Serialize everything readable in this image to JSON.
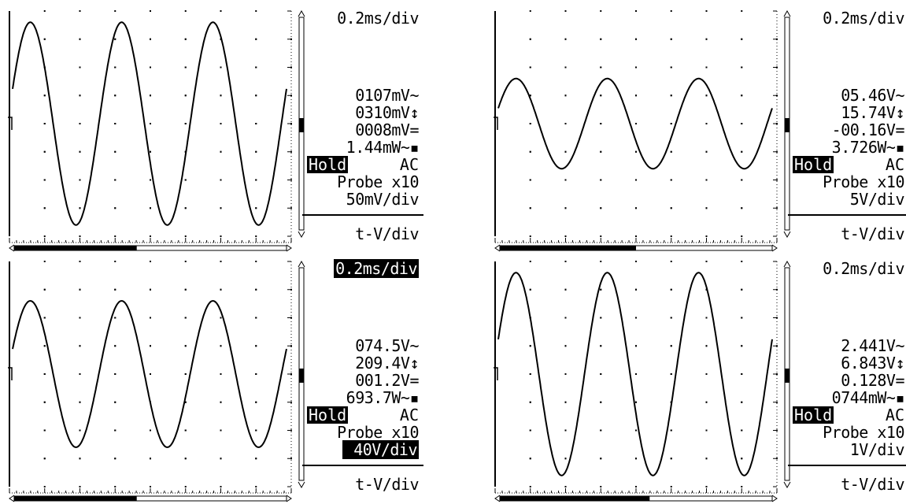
{
  "panels": [
    {
      "timebase": "0.2ms/div",
      "rms": "0107mV~",
      "peak": "0310mV↕",
      "dc": "0008mV=",
      "power": "1.44mW~▪",
      "hold": "Hold",
      "coupling": "AC",
      "probe": "Probe x10",
      "vdiv": "50mV/div",
      "mode": "t-V/div",
      "timebase_selected": false,
      "vdiv_selected": false,
      "wave": {
        "amplitude_divs": 3.6,
        "center_divs": 0.0,
        "cycles": 3
      },
      "scroll_fraction": 0.45
    },
    {
      "timebase": "0.2ms/div",
      "rms": "05.46V~",
      "peak": "15.74V↕",
      "dc": "-00.16V=",
      "power": "3.726W~▪",
      "hold": "Hold",
      "coupling": "AC",
      "probe": "Probe x10",
      "vdiv": "5V/div",
      "mode": "t-V/div",
      "timebase_selected": false,
      "vdiv_selected": false,
      "wave": {
        "amplitude_divs": 1.6,
        "center_divs": 0.0,
        "cycles": 3
      },
      "scroll_fraction": 0.5
    },
    {
      "timebase": "0.2ms/div",
      "rms": "074.5V~",
      "peak": "209.4V↕",
      "dc": "001.2V=",
      "power": "693.7W~▪",
      "hold": "Hold",
      "coupling": "AC",
      "probe": "Probe x10",
      "vdiv": "40V/div",
      "mode": "t-V/div",
      "timebase_selected": true,
      "vdiv_selected": true,
      "wave": {
        "amplitude_divs": 2.6,
        "center_divs": 0.0,
        "cycles": 3
      },
      "scroll_fraction": 0.45
    },
    {
      "timebase": "0.2ms/div",
      "rms": "2.441V~",
      "peak": "6.843V↕",
      "dc": "0.128V=",
      "power": "0744mW~▪",
      "hold": "Hold",
      "coupling": "AC",
      "probe": "Probe x10",
      "vdiv": "1V/div",
      "mode": "t-V/div",
      "timebase_selected": false,
      "vdiv_selected": false,
      "wave": {
        "amplitude_divs": 3.6,
        "center_divs": 0.0,
        "cycles": 3
      },
      "scroll_fraction": 0.55
    }
  ]
}
